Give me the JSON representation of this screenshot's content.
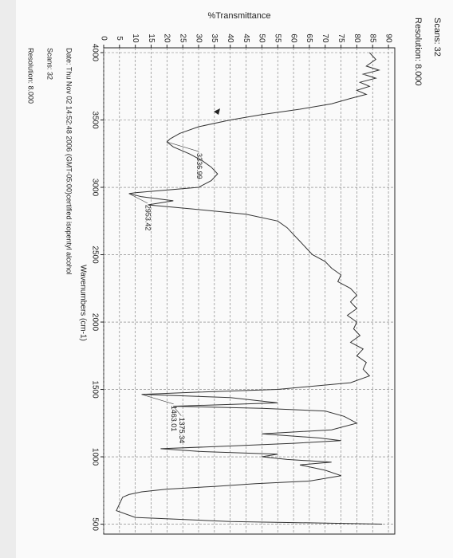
{
  "chart_data": {
    "type": "line",
    "header": [
      "Scans: 32",
      "Resolution: 8.000"
    ],
    "y_label": "%Transmittance",
    "x_label": "Wavenumbers (cm-1)",
    "footer": [
      "Date: Thu Nov 02 14:52:48 2006 (GMT-05:00)certified isopentyl alcohol",
      "Scans: 32",
      "Resolution: 8.000"
    ],
    "xlim": [
      4000,
      450
    ],
    "ylim": [
      0,
      92
    ],
    "xticks": [
      4000,
      3500,
      3000,
      2500,
      2000,
      1500,
      1000,
      500
    ],
    "yticks": [
      0,
      5,
      10,
      15,
      20,
      25,
      30,
      35,
      40,
      45,
      50,
      55,
      60,
      65,
      70,
      75,
      80,
      85,
      90
    ],
    "grid": true,
    "color": "#333333",
    "x": [
      4000,
      3950,
      3900,
      3870,
      3840,
      3810,
      3780,
      3750,
      3720,
      3690,
      3660,
      3620,
      3580,
      3540,
      3500,
      3450,
      3400,
      3360,
      3336.99,
      3300,
      3250,
      3200,
      3150,
      3100,
      3050,
      3000,
      2960,
      2953.42,
      2930,
      2900,
      2870,
      2840,
      2800,
      2750,
      2700,
      2650,
      2600,
      2550,
      2500,
      2450,
      2400,
      2350,
      2300,
      2250,
      2200,
      2150,
      2100,
      2050,
      2000,
      1950,
      1900,
      1850,
      1800,
      1750,
      1700,
      1650,
      1600,
      1550,
      1500,
      1480,
      1463.01,
      1440,
      1400,
      1385,
      1375.34,
      1360,
      1340,
      1300,
      1250,
      1200,
      1170,
      1140,
      1120,
      1100,
      1080,
      1060,
      1040,
      1020,
      1000,
      980,
      960,
      940,
      900,
      860,
      820,
      800,
      780,
      760,
      740,
      720,
      700,
      650,
      600,
      550,
      520,
      500
    ],
    "values": [
      84,
      86,
      83,
      87,
      82,
      86,
      81,
      84,
      80,
      83,
      78,
      72,
      62,
      50,
      40,
      30,
      24,
      21,
      20,
      22,
      27,
      31,
      34,
      36,
      34,
      30,
      10,
      8,
      12,
      22,
      14,
      28,
      45,
      55,
      58,
      60,
      62,
      64,
      66,
      70,
      72,
      75,
      74,
      78,
      80,
      78,
      80,
      77,
      80,
      79,
      81,
      78,
      82,
      80,
      83,
      82,
      84,
      78,
      55,
      30,
      12,
      40,
      55,
      35,
      22,
      50,
      70,
      76,
      80,
      72,
      50,
      68,
      75,
      60,
      40,
      18,
      30,
      55,
      50,
      58,
      72,
      62,
      70,
      75,
      65,
      48,
      35,
      20,
      12,
      8,
      6,
      5,
      4,
      10,
      40,
      88
    ],
    "annotations": [
      {
        "text": "3336.99",
        "x": 3336.99
      },
      {
        "text": "2953.42",
        "x": 2953.42
      },
      {
        "text": "1463.01",
        "x": 1463.01
      },
      {
        "text": "1375.34",
        "x": 1375.34
      }
    ]
  }
}
